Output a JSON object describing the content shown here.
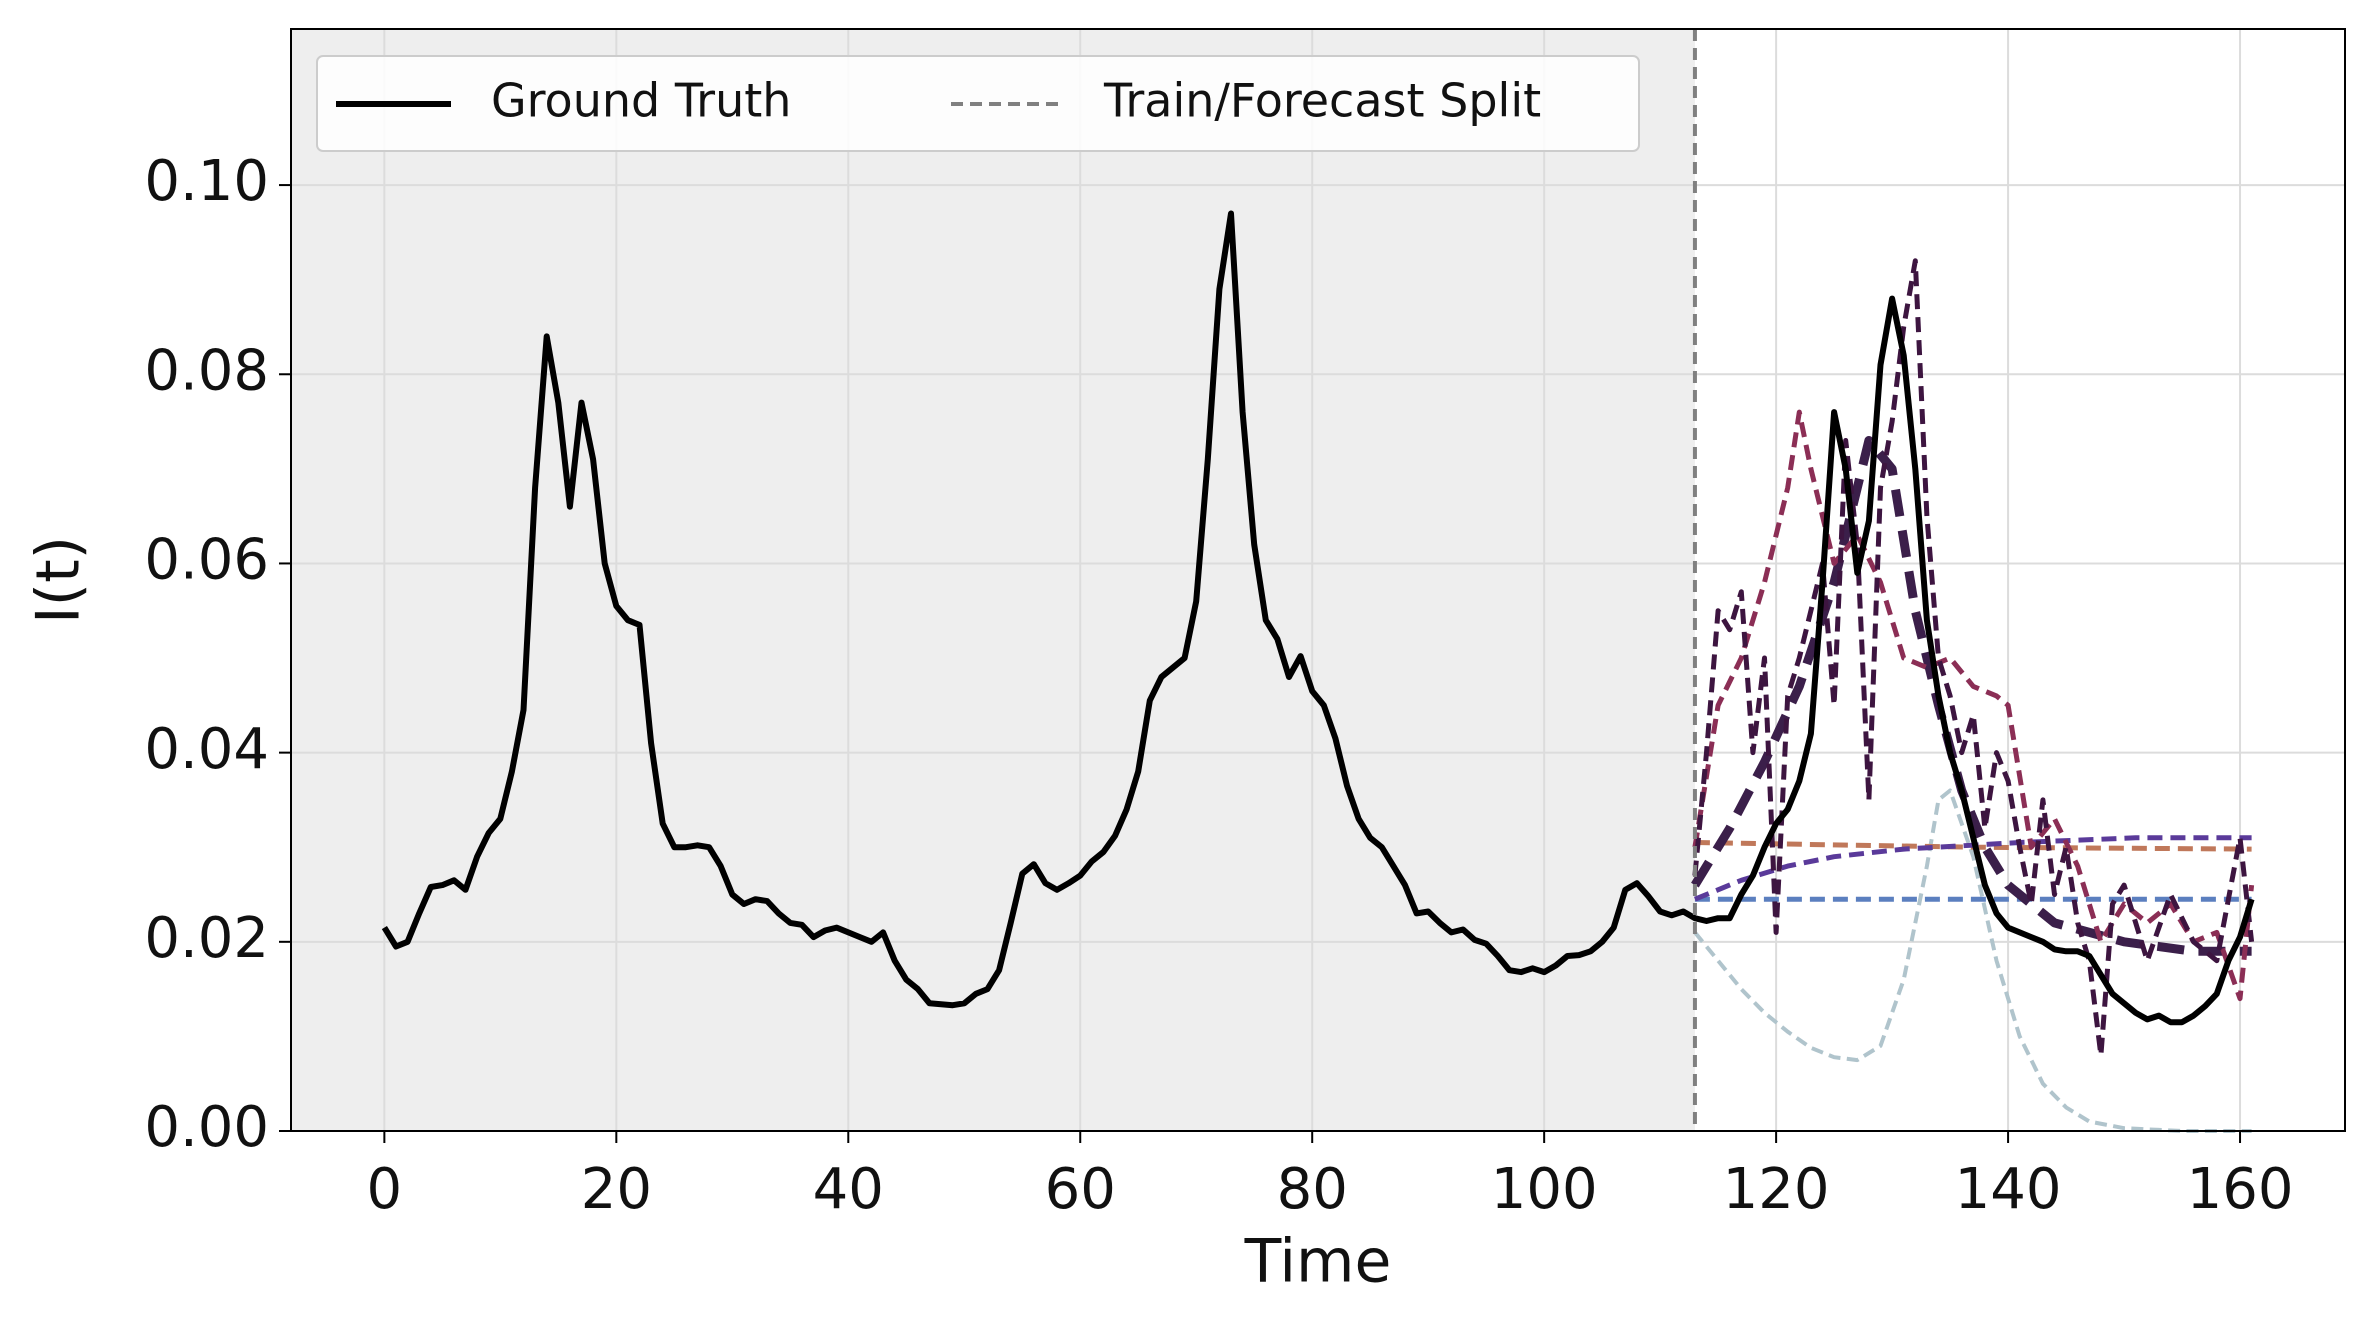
{
  "chart_data": {
    "type": "line",
    "xlabel": "Time",
    "ylabel": "I(t)",
    "xlim": [
      -8.05,
      169.05
    ],
    "ylim": [
      0,
      0.1165
    ],
    "xticks": [
      0,
      20,
      40,
      60,
      80,
      100,
      120,
      140,
      160
    ],
    "yticks": [
      {
        "value": 0,
        "label": "0.00"
      },
      {
        "value": 0.02,
        "label": "0.02"
      },
      {
        "value": 0.04,
        "label": "0.04"
      },
      {
        "value": 0.06,
        "label": "0.06"
      },
      {
        "value": 0.08,
        "label": "0.08"
      },
      {
        "value": 0.1,
        "label": "0.10"
      }
    ],
    "grid": true,
    "legend": "upper left",
    "split": {
      "label": "Train/Forecast Split",
      "x": 113,
      "color": "#808080",
      "linestyle": "dashed",
      "shade": "#eeeeee"
    },
    "series": [
      {
        "name": "Ground Truth",
        "color": "#000000",
        "linestyle": "solid",
        "linewidth": 6,
        "x": [
          0,
          1,
          2,
          3,
          4,
          5,
          6,
          7,
          8,
          9,
          10,
          11,
          12,
          13,
          14,
          15,
          16,
          17,
          18,
          19,
          20,
          21,
          22,
          23,
          24,
          25,
          26,
          27,
          28,
          29,
          30,
          31,
          32,
          33,
          34,
          35,
          36,
          37,
          38,
          39,
          40,
          41,
          42,
          43,
          44,
          45,
          46,
          47,
          48,
          49,
          50,
          51,
          52,
          53,
          54,
          55,
          56,
          57,
          58,
          59,
          60,
          61,
          62,
          63,
          64,
          65,
          66,
          67,
          68,
          69,
          70,
          71,
          72,
          73,
          74,
          75,
          76,
          77,
          78,
          79,
          80,
          81,
          82,
          83,
          84,
          85,
          86,
          87,
          88,
          89,
          90,
          91,
          92,
          93,
          94,
          95,
          96,
          97,
          98,
          99,
          100,
          101,
          102,
          103,
          104,
          105,
          106,
          107,
          108,
          109,
          110,
          111,
          112,
          113,
          114,
          115,
          116,
          117,
          118,
          119,
          120,
          121,
          122,
          123,
          124,
          125,
          126,
          127,
          128,
          129,
          130,
          131,
          132,
          133,
          134,
          135,
          136,
          137,
          138,
          139,
          140,
          141,
          142,
          143,
          144,
          145,
          146,
          147,
          148,
          149,
          150,
          151,
          152,
          153,
          154,
          155,
          156,
          157,
          158,
          159,
          160,
          161
        ],
        "values": [
          0.0215,
          0.0195,
          0.02,
          0.023,
          0.0258,
          0.026,
          0.0265,
          0.0255,
          0.029,
          0.0315,
          0.033,
          0.038,
          0.0445,
          0.068,
          0.084,
          0.077,
          0.066,
          0.077,
          0.071,
          0.06,
          0.0555,
          0.054,
          0.0535,
          0.041,
          0.0325,
          0.03,
          0.03,
          0.0302,
          0.03,
          0.028,
          0.025,
          0.024,
          0.0245,
          0.0243,
          0.023,
          0.022,
          0.0218,
          0.0205,
          0.0212,
          0.0215,
          0.021,
          0.0205,
          0.02,
          0.021,
          0.018,
          0.016,
          0.015,
          0.0135,
          0.0134,
          0.0133,
          0.0135,
          0.0145,
          0.015,
          0.017,
          0.022,
          0.0272,
          0.0282,
          0.0262,
          0.0255,
          0.0262,
          0.027,
          0.0285,
          0.0295,
          0.0312,
          0.034,
          0.038,
          0.0455,
          0.048,
          0.049,
          0.05,
          0.056,
          0.071,
          0.089,
          0.097,
          0.076,
          0.062,
          0.054,
          0.052,
          0.048,
          0.0502,
          0.0465,
          0.045,
          0.0415,
          0.0365,
          0.033,
          0.031,
          0.03,
          0.028,
          0.026,
          0.023,
          0.0232,
          0.022,
          0.021,
          0.0213,
          0.0202,
          0.0198,
          0.0185,
          0.017,
          0.0168,
          0.0172,
          0.0168,
          0.0175,
          0.0185,
          0.0186,
          0.019,
          0.02,
          0.0215,
          0.0255,
          0.0262,
          0.0248,
          0.0232,
          0.0228,
          0.0232,
          0.0225,
          0.0222,
          0.0225,
          0.0225,
          0.025,
          0.027,
          0.03,
          0.0325,
          0.034,
          0.037,
          0.042,
          0.058,
          0.076,
          0.07,
          0.059,
          0.0645,
          0.081,
          0.088,
          0.082,
          0.07,
          0.054,
          0.046,
          0.04,
          0.036,
          0.031,
          0.026,
          0.023,
          0.0215,
          0.021,
          0.0205,
          0.02,
          0.0192,
          0.019,
          0.019,
          0.0185,
          0.0165,
          0.0145,
          0.0135,
          0.0125,
          0.0118,
          0.0122,
          0.0115,
          0.0115,
          0.0122,
          0.0132,
          0.0145,
          0.018,
          0.0205,
          0.0245
        ]
      },
      {
        "color": "#b0c4cc",
        "linestyle": "dashed",
        "linewidth": 4,
        "x": [
          113,
          115,
          117,
          119,
          121,
          123,
          125,
          127,
          129,
          131,
          133,
          134,
          135,
          137,
          139,
          141,
          143,
          145,
          147,
          150,
          155,
          161
        ],
        "values": [
          0.021,
          0.018,
          0.015,
          0.0125,
          0.0105,
          0.0088,
          0.0078,
          0.0075,
          0.009,
          0.016,
          0.028,
          0.035,
          0.036,
          0.029,
          0.018,
          0.01,
          0.005,
          0.0025,
          0.001,
          0.0003,
          0,
          0
        ]
      },
      {
        "color": "#c0785a",
        "linestyle": "dashed",
        "linewidth": 5,
        "x": [
          113,
          137,
          161
        ],
        "values": [
          0.0305,
          0.03,
          0.0298
        ]
      },
      {
        "color": "#5b7fbf",
        "linestyle": "dashed",
        "linewidth": 5,
        "x": [
          113,
          137,
          161
        ],
        "values": [
          0.0245,
          0.0245,
          0.0245
        ]
      },
      {
        "color": "#5a3a9a",
        "linestyle": "dashed",
        "linewidth": 5,
        "x": [
          113,
          117,
          121,
          125,
          131,
          141,
          151,
          161
        ],
        "values": [
          0.0245,
          0.0265,
          0.028,
          0.029,
          0.0298,
          0.0305,
          0.031,
          0.031
        ]
      },
      {
        "color": "#3b1f4a",
        "linestyle": "dashed",
        "linewidth": 9,
        "x": [
          113,
          116,
          119,
          122,
          125,
          128,
          130,
          132,
          134,
          136,
          138,
          140,
          144,
          150,
          156,
          161
        ],
        "values": [
          0.026,
          0.032,
          0.039,
          0.047,
          0.058,
          0.073,
          0.07,
          0.055,
          0.045,
          0.036,
          0.03,
          0.026,
          0.022,
          0.02,
          0.019,
          0.019
        ]
      },
      {
        "color": "#8b2e55",
        "linestyle": "dashed",
        "linewidth": 5,
        "x": [
          113,
          115,
          117,
          119,
          121,
          122,
          123,
          125,
          127,
          129,
          131,
          133,
          135,
          137,
          139,
          140,
          142,
          144,
          146,
          148,
          150,
          152,
          154,
          156,
          158,
          160,
          161
        ],
        "values": [
          0.03,
          0.045,
          0.05,
          0.058,
          0.068,
          0.076,
          0.07,
          0.06,
          0.063,
          0.058,
          0.05,
          0.049,
          0.05,
          0.047,
          0.046,
          0.045,
          0.03,
          0.033,
          0.028,
          0.02,
          0.024,
          0.022,
          0.024,
          0.02,
          0.021,
          0.014,
          0.026
        ]
      },
      {
        "color": "#3d1540",
        "linestyle": "dashed",
        "linewidth": 5,
        "x": [
          113,
          114,
          115,
          116,
          117,
          118,
          119,
          120,
          121,
          122,
          123,
          124,
          125,
          126,
          127,
          128,
          129,
          130,
          131,
          132,
          133,
          134,
          135,
          136,
          137,
          138,
          139,
          140,
          141,
          142,
          143,
          144,
          145,
          146,
          147,
          148,
          149,
          150,
          152,
          154,
          156,
          158,
          160,
          161
        ],
        "values": [
          0.027,
          0.04,
          0.055,
          0.053,
          0.057,
          0.04,
          0.05,
          0.021,
          0.046,
          0.05,
          0.055,
          0.06,
          0.045,
          0.073,
          0.062,
          0.035,
          0.068,
          0.075,
          0.085,
          0.092,
          0.065,
          0.05,
          0.046,
          0.04,
          0.044,
          0.032,
          0.04,
          0.037,
          0.03,
          0.024,
          0.035,
          0.025,
          0.03,
          0.022,
          0.018,
          0.008,
          0.024,
          0.026,
          0.018,
          0.025,
          0.02,
          0.018,
          0.031,
          0.02
        ]
      }
    ]
  }
}
